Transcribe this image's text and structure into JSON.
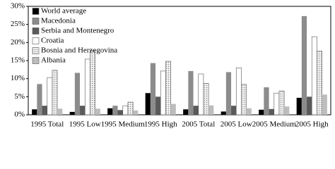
{
  "chart_data": {
    "type": "bar",
    "categories": [
      "1995 Total",
      "1995 Low",
      "1995 Medium",
      "1995 High",
      "2005 Total",
      "2005 Low",
      "2005 Medium",
      "2005 High"
    ],
    "series": [
      {
        "name": "World average",
        "color": "#000000",
        "values": [
          1.5,
          0.8,
          1.8,
          6.0,
          1.5,
          0.9,
          1.4,
          4.7
        ]
      },
      {
        "name": "Macedonia",
        "color": "#8c8c8c",
        "values": [
          8.5,
          11.6,
          2.5,
          14.3,
          12.1,
          11.8,
          7.6,
          27.3
        ]
      },
      {
        "name": "Serbia and Montenegro",
        "color": "#5a5a5a",
        "values": [
          2.5,
          2.5,
          1.3,
          5.0,
          2.5,
          2.5,
          1.6,
          5.0
        ]
      },
      {
        "name": "Croatia",
        "color": "#ffffff",
        "values": [
          10.3,
          15.4,
          2.5,
          12.1,
          11.3,
          13.0,
          6.0,
          21.6
        ]
      },
      {
        "name": "Bosnia and Herzegovina",
        "color": "#dcdcdc",
        "values": [
          12.3,
          17.8,
          3.5,
          14.8,
          8.7,
          8.4,
          6.6,
          17.6
        ]
      },
      {
        "name": "Albania",
        "color": "#bdbdbd",
        "values": [
          1.7,
          1.7,
          1.2,
          3.0,
          2.6,
          1.8,
          2.3,
          5.6
        ]
      }
    ],
    "ylim": [
      0,
      30
    ],
    "yticks": [
      {
        "value": 0,
        "label": "0%"
      },
      {
        "value": 5,
        "label": "5%"
      },
      {
        "value": 10,
        "label": "10%"
      },
      {
        "value": 15,
        "label": "15%"
      },
      {
        "value": 20,
        "label": "20%"
      },
      {
        "value": 25,
        "label": "25%"
      },
      {
        "value": 30,
        "label": "30%"
      }
    ],
    "legend": "upper left"
  }
}
